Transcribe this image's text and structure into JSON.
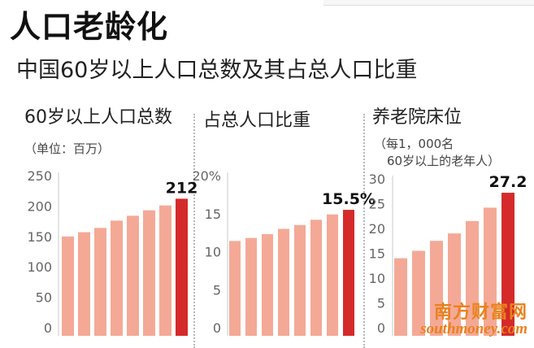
{
  "header": {
    "title": "人口老龄化",
    "subtitle": "中国60岁以上人口总数及其占总人口比重"
  },
  "panels": [
    {
      "title": "60岁以上人口总数",
      "unit": "（单位：百万）"
    },
    {
      "title": "占总人口比重",
      "unit": ""
    },
    {
      "title": "养老院床位",
      "unit_line1": "（每1，000名",
      "unit_line2": "60岁以上的老年人）"
    }
  ],
  "watermark": {
    "cn": "南方财富网",
    "en": "southmoney.com"
  },
  "colors": {
    "bar": "#f4a996",
    "highlight": "#d42a2a",
    "axis": "#c8c8c8"
  },
  "chart_data": [
    {
      "type": "bar",
      "title": "60岁以上人口总数",
      "ylim": [
        0,
        250
      ],
      "yticks": [
        "0",
        "50",
        "100",
        "150",
        "200",
        "250"
      ],
      "values": [
        150,
        157,
        164,
        176,
        184,
        193,
        201,
        212
      ],
      "highlight_last": true,
      "data_label": "212"
    },
    {
      "type": "bar",
      "title": "占总人口比重",
      "ylim": [
        0,
        20
      ],
      "yticks": [
        "0",
        "5",
        "10",
        "15",
        "20%"
      ],
      "values": [
        11.4,
        11.8,
        12.3,
        13.0,
        13.5,
        14.2,
        14.9,
        15.5
      ],
      "highlight_last": true,
      "data_label": "15.5%"
    },
    {
      "type": "bar",
      "title": "养老院床位",
      "ylim": [
        0,
        30
      ],
      "yticks": [
        "0",
        "5",
        "10",
        "15",
        "20",
        "25",
        "30"
      ],
      "values": [
        14.0,
        15.5,
        17.5,
        19.0,
        21.5,
        24.2,
        27.2
      ],
      "highlight_last": true,
      "data_label": "27.2"
    }
  ]
}
